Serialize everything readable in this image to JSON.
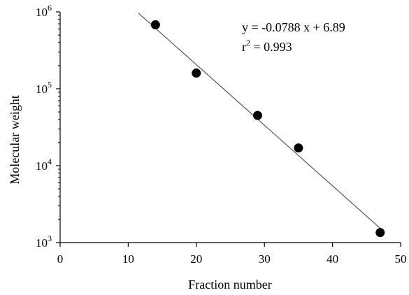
{
  "chart_data": {
    "type": "scatter",
    "xlabel": "Fraction number",
    "ylabel": "Molecular weight",
    "xlim": [
      0,
      50
    ],
    "ylim": [
      1000,
      1000000
    ],
    "y_scale": "log",
    "grid": false,
    "x_ticks": [
      "0",
      "10",
      "20",
      "30",
      "40",
      "50"
    ],
    "y_ticks": [
      {
        "base": "10",
        "exp": "3",
        "value": 1000
      },
      {
        "base": "10",
        "exp": "4",
        "value": 10000
      },
      {
        "base": "10",
        "exp": "5",
        "value": 100000
      },
      {
        "base": "10",
        "exp": "6",
        "value": 1000000
      }
    ],
    "points": [
      {
        "x": 14,
        "y": 680000
      },
      {
        "x": 20,
        "y": 160000
      },
      {
        "x": 29,
        "y": 45000
      },
      {
        "x": 35,
        "y": 17000
      },
      {
        "x": 47,
        "y": 1350
      }
    ],
    "fit": {
      "slope": -0.0788,
      "intercept": 6.89,
      "x_range": [
        11.5,
        47.5
      ]
    },
    "annotation": {
      "equation": "y = -0.0788 x + 6.89",
      "r2_prefix": "r",
      "r2_exp": "2",
      "r2_rest": " = 0.993"
    },
    "colors": {
      "marker": "#000000",
      "line": "#555555",
      "axis": "#000000"
    }
  }
}
